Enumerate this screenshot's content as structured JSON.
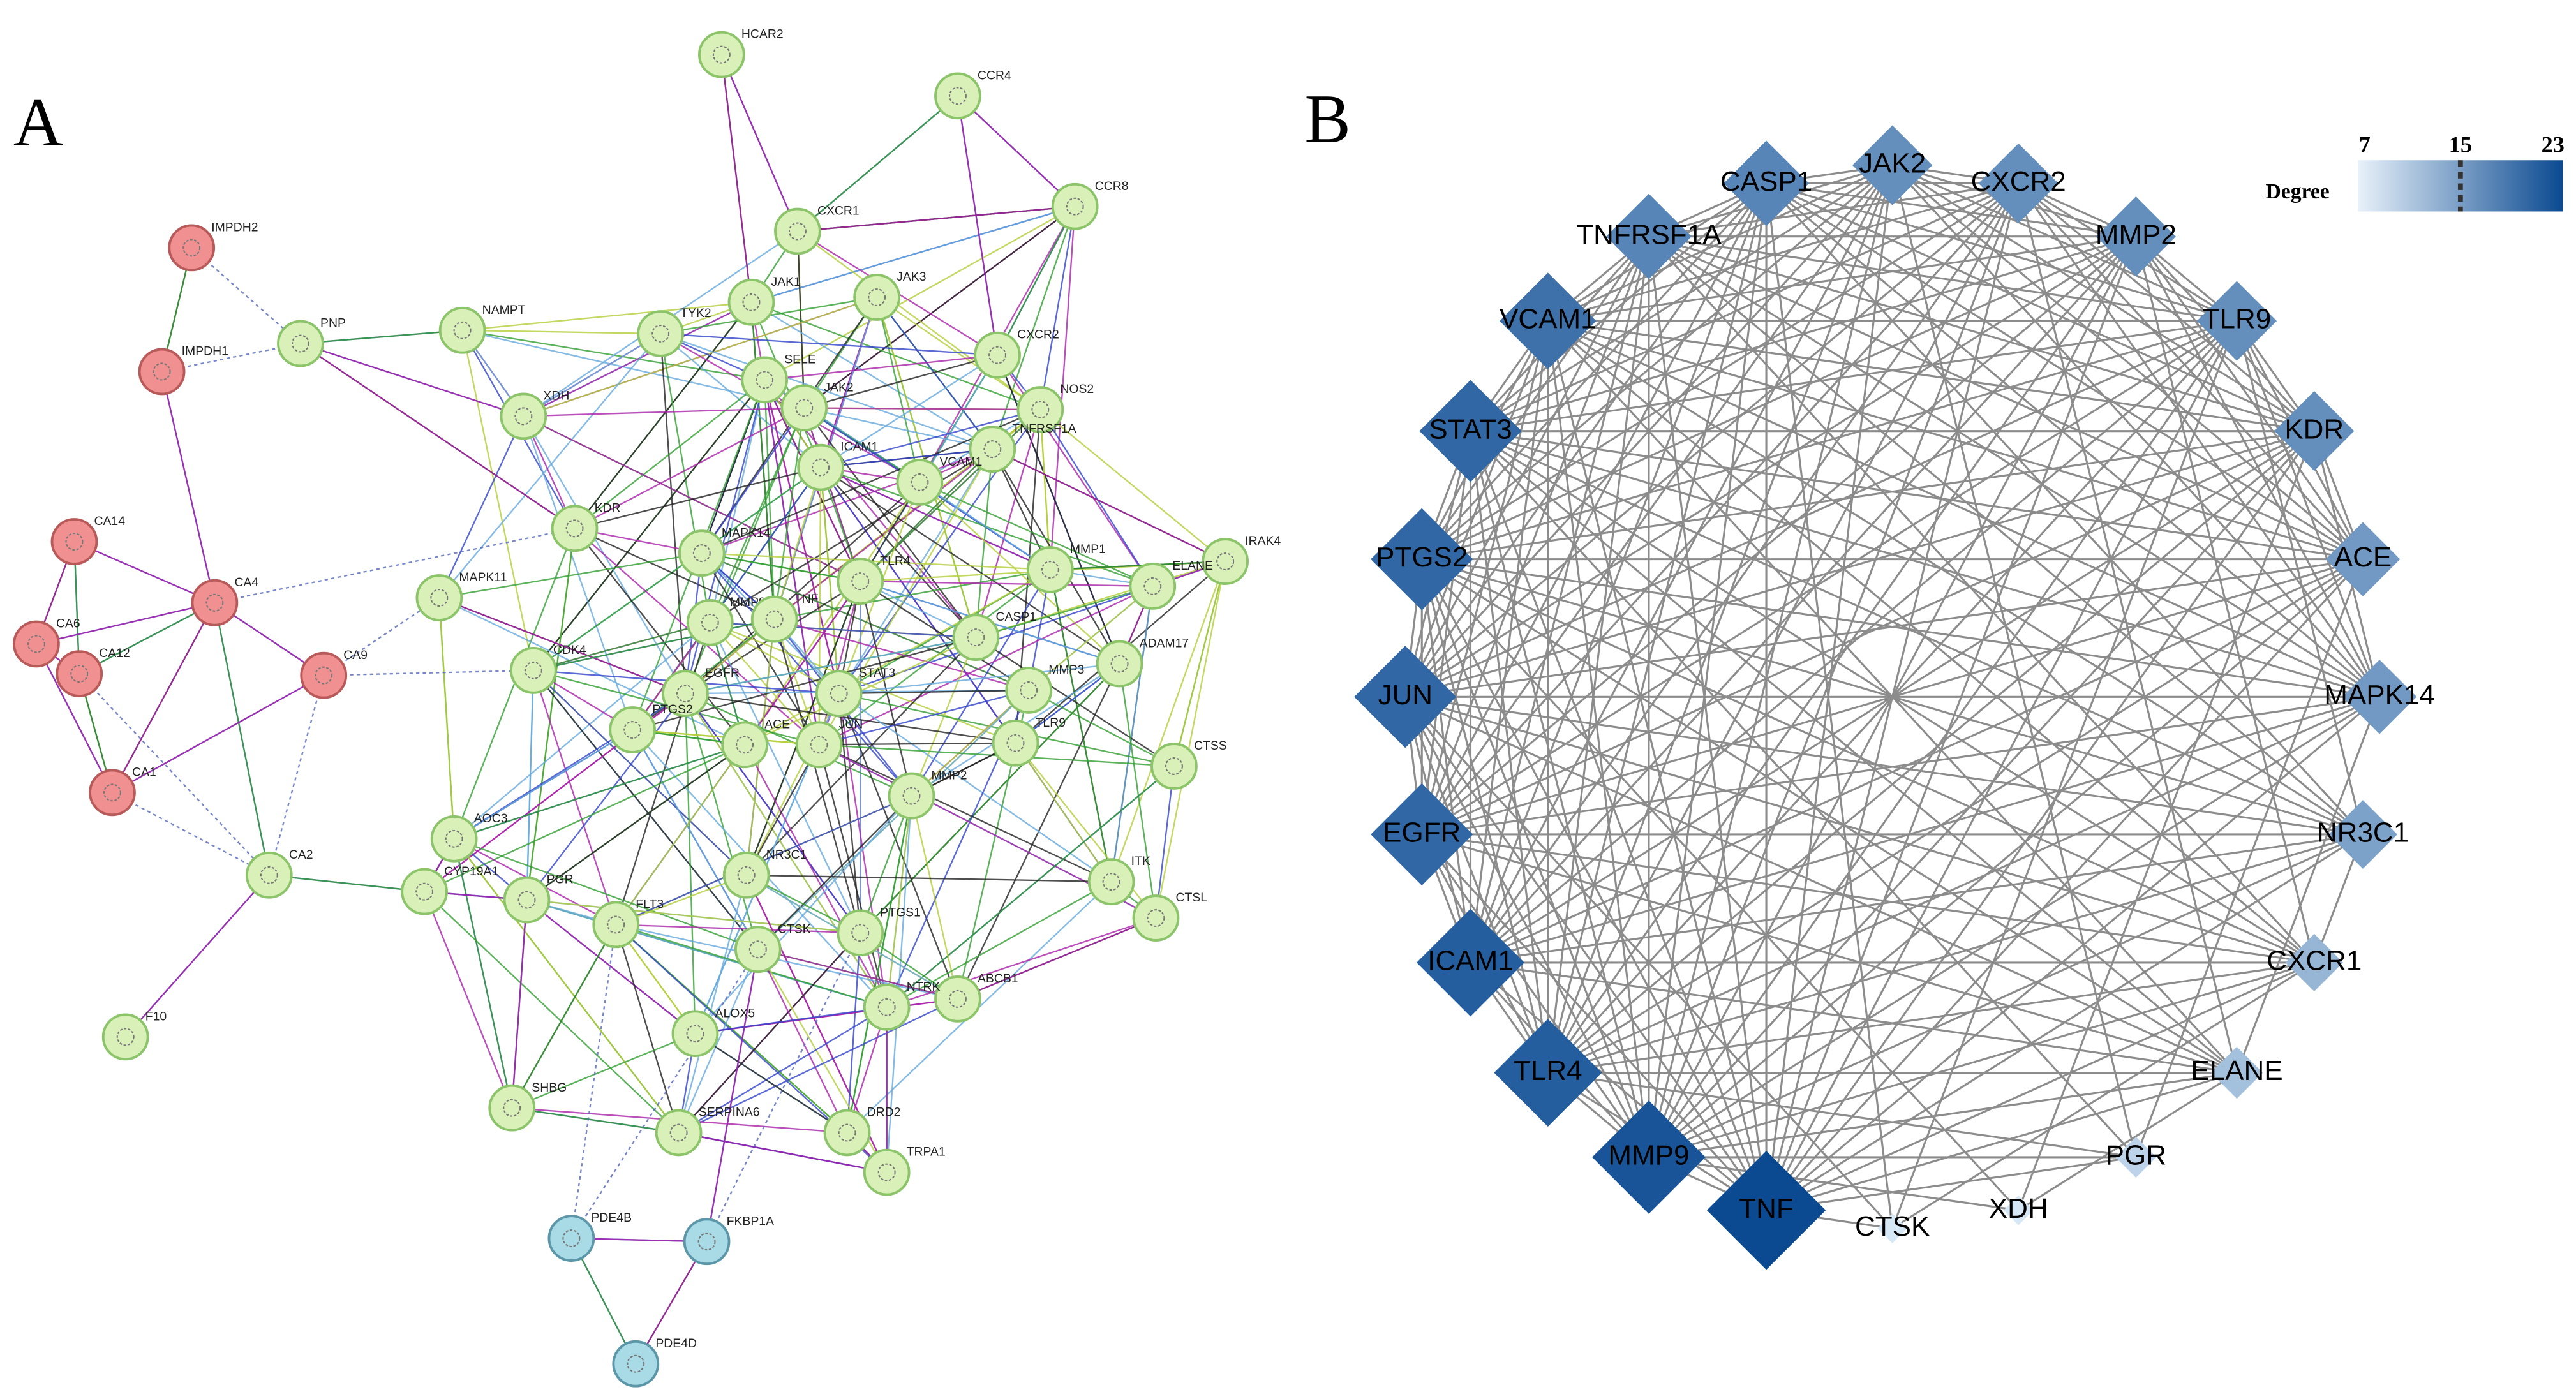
{
  "panels": [
    {
      "label": "A",
      "nodes": [
        "HCAR2",
        "CCR4",
        "CCR8",
        "IMPDH2",
        "PNP",
        "IMPDH1",
        "NAMPT",
        "CXCR1",
        "JAK1",
        "JAK3",
        "TYK2",
        "SELE",
        "CXCR2",
        "XDH",
        "JAK2",
        "NOS2",
        "TNFRSF1A",
        "ICAM1",
        "VCAM1",
        "CA14",
        "KDR",
        "MAPK14",
        "MMP1",
        "IRAK4",
        "ELANE",
        "CA4",
        "MAPK11",
        "TLR4",
        "MMP9",
        "TNF",
        "CASP1",
        "CA6",
        "CDK4",
        "ADAM17",
        "CA12",
        "CA9",
        "EGFR",
        "STAT3",
        "MMP3",
        "PTGS2",
        "ACE",
        "JUN",
        "TLR9",
        "CTSS",
        "CA1",
        "MMP2",
        "AOC3",
        "CA2",
        "CYP19A1",
        "PGR",
        "NR3C1",
        "ITK",
        "FLT3",
        "CTSL",
        "PTGS1",
        "CTSK",
        "ABCB1",
        "NTRK",
        "ALOX5",
        "F10",
        "SHBG",
        "SERPINA6",
        "DRD2",
        "TRPA1",
        "PDE4B",
        "FKBP1A",
        "PDE4D"
      ]
    },
    {
      "label": "B",
      "legend": {
        "title": "Degree",
        "ticks": [
          7,
          15,
          23
        ]
      },
      "nodes": [
        {
          "label": "JAK2",
          "degree": 16
        },
        {
          "label": "CXCR2",
          "degree": 16
        },
        {
          "label": "MMP2",
          "degree": 16
        },
        {
          "label": "TLR9",
          "degree": 16
        },
        {
          "label": "KDR",
          "degree": 16
        },
        {
          "label": "ACE",
          "degree": 15
        },
        {
          "label": "MAPK14",
          "degree": 15
        },
        {
          "label": "NR3C1",
          "degree": 14
        },
        {
          "label": "CXCR1",
          "degree": 12
        },
        {
          "label": "ELANE",
          "degree": 11
        },
        {
          "label": "PGR",
          "degree": 9
        },
        {
          "label": "XDH",
          "degree": 7
        },
        {
          "label": "CTSK",
          "degree": 7
        },
        {
          "label": "TNF",
          "degree": 23
        },
        {
          "label": "MMP9",
          "degree": 22
        },
        {
          "label": "TLR4",
          "degree": 21
        },
        {
          "label": "ICAM1",
          "degree": 21
        },
        {
          "label": "EGFR",
          "degree": 20
        },
        {
          "label": "JUN",
          "degree": 20
        },
        {
          "label": "PTGS2",
          "degree": 20
        },
        {
          "label": "STAT3",
          "degree": 20
        },
        {
          "label": "VCAM1",
          "degree": 19
        },
        {
          "label": "TNFRSF1A",
          "degree": 17
        },
        {
          "label": "CASP1",
          "degree": 17
        }
      ]
    }
  ]
}
